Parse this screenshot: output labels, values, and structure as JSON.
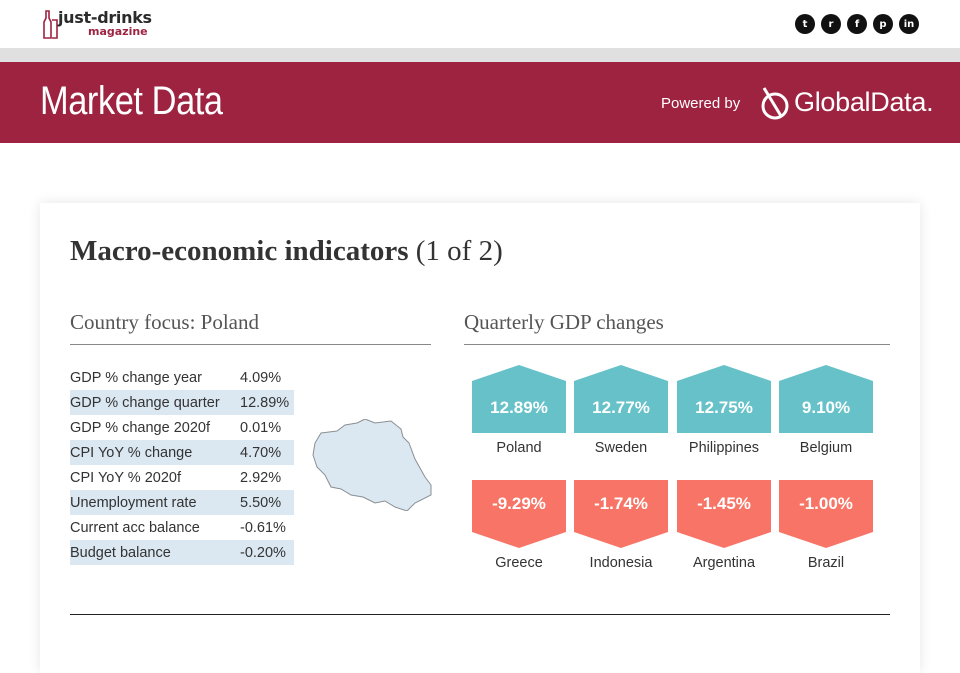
{
  "brand": {
    "logo_main": "just-drinks",
    "logo_sub": "magazine"
  },
  "social": [
    {
      "icon": "twitter-icon",
      "glyph": "t"
    },
    {
      "icon": "reddit-icon",
      "glyph": "r"
    },
    {
      "icon": "facebook-icon",
      "glyph": "f"
    },
    {
      "icon": "pinterest-icon",
      "glyph": "p"
    },
    {
      "icon": "linkedin-icon",
      "glyph": "in"
    }
  ],
  "banner": {
    "title": "Market Data",
    "powered_by": "Powered by",
    "provider": "GlobalData."
  },
  "card": {
    "title_bold": "Macro-economic indicators",
    "title_suffix": "(1 of 2)"
  },
  "country_focus": {
    "title": "Country focus: Poland",
    "rows": [
      {
        "label": "GDP % change year",
        "value": "4.09%"
      },
      {
        "label": "GDP % change quarter",
        "value": "12.89%"
      },
      {
        "label": "GDP % change 2020f",
        "value": "0.01%"
      },
      {
        "label": "CPI YoY % change",
        "value": "4.70%"
      },
      {
        "label": "CPI YoY % 2020f",
        "value": "2.92%"
      },
      {
        "label": "Unemployment rate",
        "value": "5.50%"
      },
      {
        "label": "Current acc balance",
        "value": "-0.61%"
      },
      {
        "label": "Budget balance",
        "value": "-0.20%"
      }
    ]
  },
  "gdp_changes": {
    "title": "Quarterly GDP changes",
    "top": [
      {
        "country": "Poland",
        "value": "12.89%"
      },
      {
        "country": "Sweden",
        "value": "12.77%"
      },
      {
        "country": "Philippines",
        "value": "12.75%"
      },
      {
        "country": "Belgium",
        "value": "9.10%"
      }
    ],
    "bottom": [
      {
        "country": "Greece",
        "value": "-9.29%"
      },
      {
        "country": "Indonesia",
        "value": "-1.74%"
      },
      {
        "country": "Argentina",
        "value": "-1.45%"
      },
      {
        "country": "Brazil",
        "value": "-1.00%"
      }
    ]
  },
  "colors": {
    "brand": "#9d2340",
    "positive": "#66c1c8",
    "negative": "#f77466",
    "row_highlight": "#dbe8f2",
    "map_fill": "#dbe8f2"
  }
}
